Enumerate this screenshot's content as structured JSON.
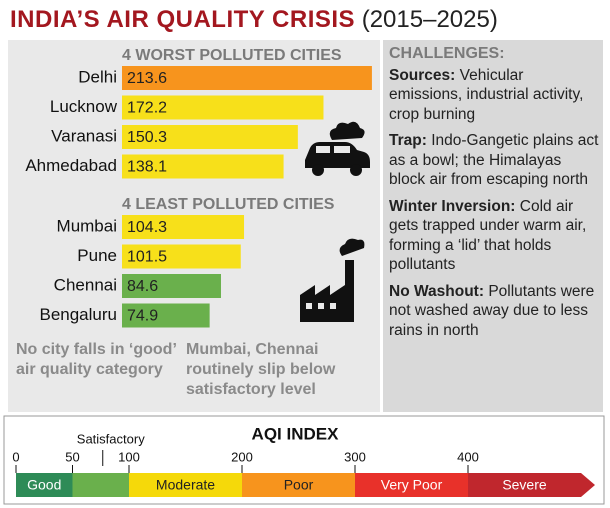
{
  "title": "INDIA’S AIR QUALITY CRISIS",
  "period": "(2015–2025)",
  "chart_data": [
    {
      "type": "bar",
      "title": "4 WORST POLLUTED CITIES",
      "categories": [
        "Delhi",
        "Lucknow",
        "Varanasi",
        "Ahmedabad"
      ],
      "values": [
        213.6,
        172.2,
        150.3,
        138.1
      ],
      "colors": [
        "#f7941d",
        "#f7e01a",
        "#f7e01a",
        "#f7e01a"
      ]
    },
    {
      "type": "bar",
      "title": "4 LEAST POLLUTED CITIES",
      "categories": [
        "Mumbai",
        "Pune",
        "Chennai",
        "Bengaluru"
      ],
      "values": [
        104.3,
        101.5,
        84.6,
        74.9
      ],
      "colors": [
        "#f7e01a",
        "#f7e01a",
        "#6ab04c",
        "#6ab04c"
      ]
    },
    {
      "type": "scale",
      "title": "AQI INDEX",
      "xlim": [
        0,
        500
      ],
      "xticks": [
        0,
        50,
        100,
        200,
        300,
        400
      ],
      "bands": [
        {
          "name": "Good",
          "from": 0,
          "to": 50,
          "color": "#2e8b57"
        },
        {
          "name": "Satisfactory",
          "from": 50,
          "to": 100,
          "color": "#6ab04c"
        },
        {
          "name": "Moderate",
          "from": 100,
          "to": 200,
          "color": "#f5d90a"
        },
        {
          "name": "Poor",
          "from": 200,
          "to": 300,
          "color": "#f7941d"
        },
        {
          "name": "Very Poor",
          "from": 300,
          "to": 400,
          "color": "#e8312a"
        },
        {
          "name": "Severe",
          "from": 400,
          "to": 500,
          "color": "#c0272d"
        }
      ]
    }
  ],
  "notes": [
    "No city falls in ‘good’ air quality category",
    "Mumbai, Chennai routinely slip below satisfactory level"
  ],
  "challenges": {
    "title": "CHALLENGES:",
    "items": [
      {
        "label": "Sources:",
        "text": "Vehicular emissions, industrial activity, crop burning"
      },
      {
        "label": "Trap:",
        "text": "Indo-Gangetic plains act as a bowl; the Himalayas block air from escaping north"
      },
      {
        "label": "Winter Inversion:",
        "text": "Cold air gets trapped under warm air, forming a ‘lid’ that holds pollutants"
      },
      {
        "label": "No Washout:",
        "text": "Pollutants were not washed away due to less rains in north"
      }
    ]
  }
}
